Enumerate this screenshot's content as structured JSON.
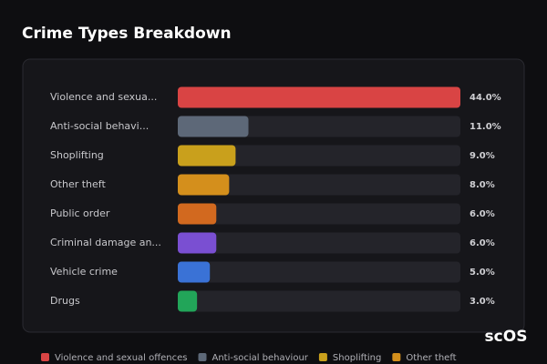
{
  "chart_data": {
    "type": "bar",
    "orientation": "horizontal",
    "title": "Crime Types Breakdown",
    "categories": [
      "Violence and sexua...",
      "Anti-social behavi...",
      "Shoplifting",
      "Other theft",
      "Public order",
      "Criminal damage an...",
      "Vehicle crime",
      "Drugs"
    ],
    "values": [
      44,
      11,
      9,
      8,
      6,
      6,
      5,
      3
    ],
    "value_labels": [
      "44.0%",
      "11.0%",
      "9.0%",
      "8.0%",
      "6.0%",
      "6.0%",
      "5.0%",
      "3.0%"
    ],
    "colors": [
      "#d94444",
      "#5d6878",
      "#c9a01c",
      "#d48f1c",
      "#d2691f",
      "#7a4fd2",
      "#3a72d6",
      "#22a559"
    ],
    "xlim": [
      0,
      44
    ],
    "legend": [
      "Violence and sexual offences",
      "Anti-social behaviour",
      "Shoplifting",
      "Other theft"
    ],
    "watermark": "scOS"
  }
}
